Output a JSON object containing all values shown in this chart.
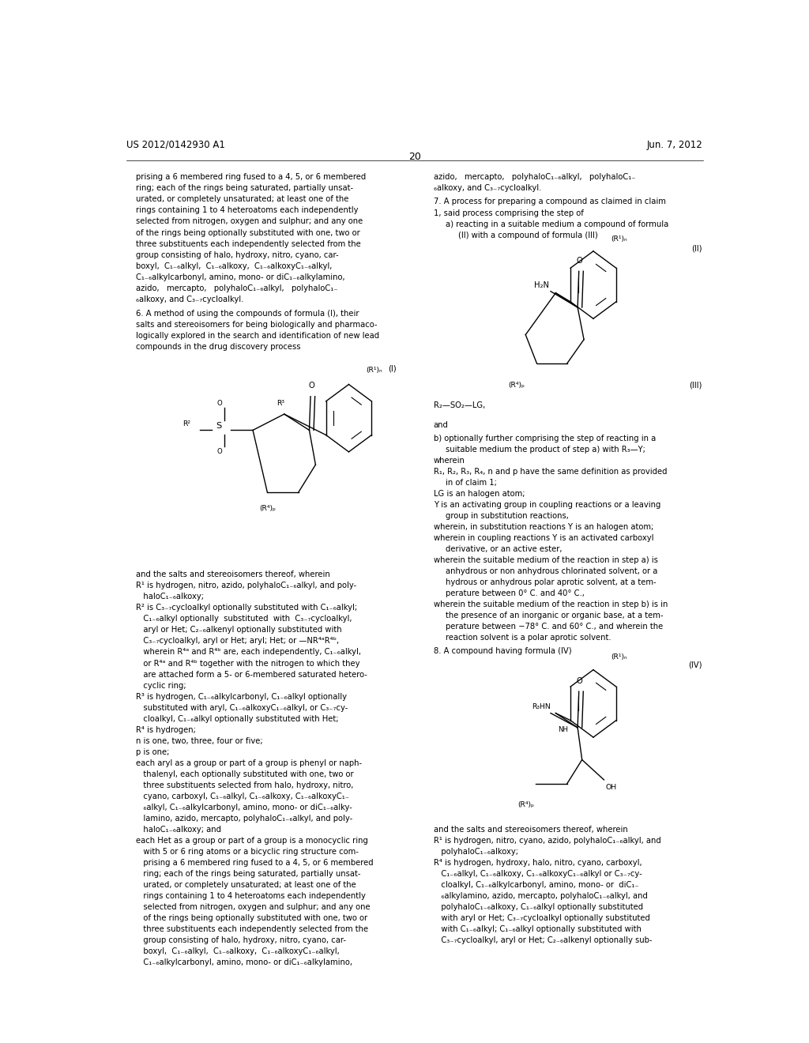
{
  "background_color": "#ffffff",
  "header_left": "US 2012/0142930 A1",
  "header_right": "Jun. 7, 2012",
  "page_number": "20",
  "font_size": 7.2,
  "title_font_size": 8.5
}
